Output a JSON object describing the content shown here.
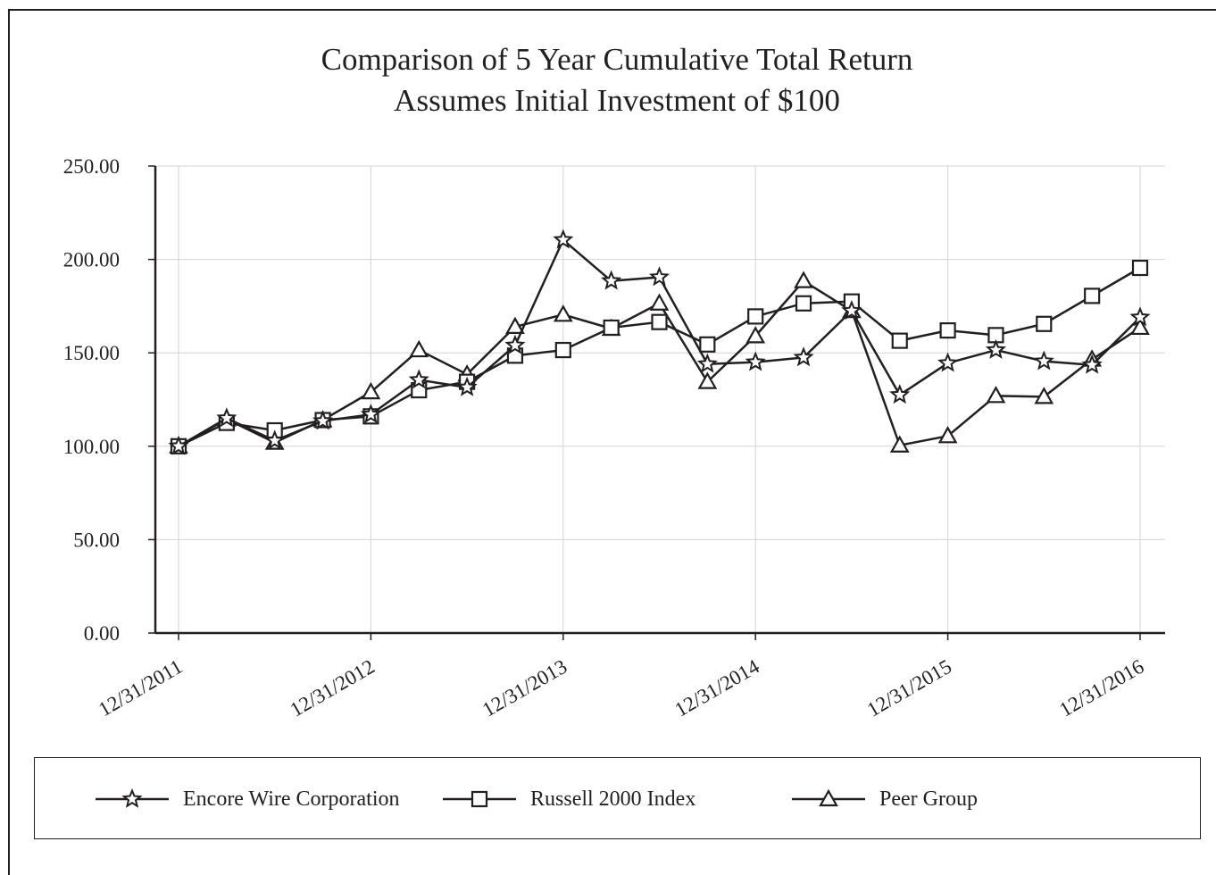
{
  "chart_data": {
    "type": "line",
    "title": "Comparison of 5 Year Cumulative Total Return",
    "subtitle": "Assumes Initial Investment of $100",
    "xlabel": "",
    "ylabel": "",
    "ylim": [
      0,
      250
    ],
    "y_ticks": [
      "0.00",
      "50.00",
      "100.00",
      "150.00",
      "200.00",
      "250.00"
    ],
    "x_ticks": [
      "12/31/2011",
      "12/31/2012",
      "12/31/2013",
      "12/31/2014",
      "12/31/2015",
      "12/31/2016"
    ],
    "x": [
      "12/31/2011",
      "3/31/2012",
      "6/30/2012",
      "9/30/2012",
      "12/31/2012",
      "3/31/2013",
      "6/30/2013",
      "9/30/2013",
      "12/31/2013",
      "3/31/2014",
      "6/30/2014",
      "9/30/2014",
      "12/31/2014",
      "3/31/2015",
      "6/30/2015",
      "9/30/2015",
      "12/31/2015",
      "3/31/2016",
      "6/30/2016",
      "9/30/2016",
      "12/31/2016"
    ],
    "grid": true,
    "legend_position": "bottom",
    "series": [
      {
        "name": "Encore Wire Corporation",
        "marker": "star",
        "values": [
          100.0,
          115.0,
          103.0,
          113.5,
          117.0,
          135.5,
          131.5,
          154.0,
          210.5,
          188.5,
          190.5,
          144.0,
          145.0,
          147.5,
          172.5,
          127.5,
          144.5,
          151.5,
          145.5,
          143.5,
          169.0
        ]
      },
      {
        "name": "Russell 2000 Index",
        "marker": "square",
        "values": [
          100.0,
          112.5,
          108.5,
          114.0,
          116.0,
          130.0,
          134.5,
          148.5,
          151.5,
          163.5,
          166.5,
          154.5,
          169.5,
          176.5,
          177.5,
          156.5,
          162.0,
          159.5,
          165.5,
          180.5,
          195.5
        ]
      },
      {
        "name": "Peer Group",
        "marker": "triangle",
        "values": [
          100.0,
          114.5,
          102.0,
          114.0,
          129.0,
          151.5,
          138.5,
          164.0,
          170.5,
          163.0,
          176.5,
          134.5,
          159.0,
          188.5,
          172.5,
          100.5,
          105.5,
          127.0,
          126.5,
          146.5,
          163.5
        ]
      }
    ],
    "colors": {
      "line": "#231f20",
      "grid": "#d4d4d4",
      "axis": "#231f20"
    }
  }
}
